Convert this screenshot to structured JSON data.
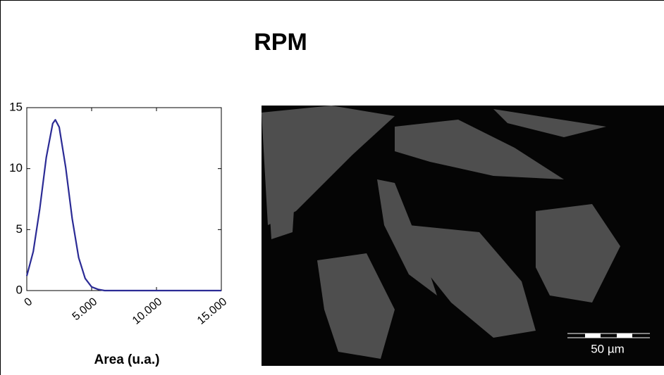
{
  "title": "RPM",
  "chart_data": {
    "type": "line",
    "x_label": "Area (u.a.)",
    "x": [
      0,
      500,
      1000,
      1500,
      2000,
      2200,
      2500,
      3000,
      3500,
      4000,
      4500,
      5000,
      5500,
      6000,
      15000
    ],
    "values": [
      1.2,
      3.2,
      6.7,
      10.9,
      13.7,
      14,
      13.4,
      10.1,
      5.9,
      2.7,
      1.0,
      0.3,
      0.1,
      0,
      0
    ],
    "color": "#2b2b95",
    "xlim": [
      0,
      15000
    ],
    "ylim": [
      0,
      15
    ],
    "xticks": [
      0,
      {
        "value": 5000,
        "label": "5.000"
      },
      {
        "value": 10000,
        "label": "10.000"
      },
      {
        "value": 15000,
        "label": "15.000"
      }
    ],
    "yticks": [
      0,
      5,
      10,
      15
    ]
  },
  "image": {
    "scale_bar": "50 µm"
  }
}
